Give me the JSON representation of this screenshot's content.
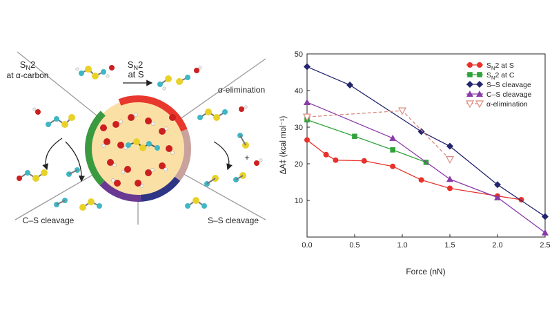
{
  "scheme": {
    "sn2_s_line1": "S",
    "sn2_s_sub": "N",
    "sn2_s_line1b": "2",
    "sn2_s_line2": "at S",
    "sn2_c_line1": "S",
    "sn2_c_sub": "N",
    "sn2_c_line1b": "2",
    "sn2_c_line2": "at α-carbon",
    "alpha_elim": "α-elimination",
    "cs_cleavage": "C–S cleavage",
    "ss_cleavage": "S–S cleavage",
    "plus": "+",
    "ring_colors": [
      "#e8372c",
      "#c9a19d",
      "#2e3585",
      "#6a3a93",
      "#3a9a3f"
    ],
    "core_color": "#fbe0a6"
  },
  "chart_data": {
    "type": "line",
    "xlabel": "Force (nN)",
    "ylabel": "ΔA‡ (kcal mol⁻¹)",
    "xlim": [
      0,
      2.5
    ],
    "ylim": [
      0,
      50
    ],
    "xticks": [
      "0.0",
      "0.5",
      "1.0",
      "1.5",
      "2.0",
      "2.5"
    ],
    "yticks": [
      "10",
      "20",
      "30",
      "40",
      "50"
    ],
    "legend_position": "top-right",
    "series": [
      {
        "name": "SN2 at S",
        "legend_main": "S",
        "legend_sub": "N",
        "legend_rest": "2 at S",
        "color": "#e8312a",
        "marker": "circle",
        "dashed": false,
        "x": [
          0.0,
          0.2,
          0.3,
          0.6,
          0.9,
          1.2,
          1.5,
          2.0,
          2.25
        ],
        "y": [
          26.5,
          22.5,
          21.0,
          20.8,
          19.3,
          15.6,
          13.3,
          11.2,
          10.2
        ]
      },
      {
        "name": "SN2 at C",
        "legend_main": "S",
        "legend_sub": "N",
        "legend_rest": "2 at C",
        "color": "#2fa33a",
        "marker": "square",
        "dashed": false,
        "x": [
          0.0,
          0.5,
          0.9,
          1.25
        ],
        "y": [
          32.0,
          27.5,
          23.8,
          20.4
        ]
      },
      {
        "name": "S–S cleavage",
        "legend_main": "S–S cleavage",
        "legend_sub": "",
        "legend_rest": "",
        "color": "#23256e",
        "marker": "diamond",
        "dashed": false,
        "x": [
          0.0,
          0.45,
          1.2,
          1.5,
          2.0,
          2.5
        ],
        "y": [
          46.5,
          41.5,
          28.8,
          24.8,
          14.3,
          5.6
        ]
      },
      {
        "name": "C–S cleavage",
        "legend_main": "C–S cleavage",
        "legend_sub": "",
        "legend_rest": "",
        "color": "#8a3aa8",
        "marker": "triangle",
        "dashed": false,
        "x": [
          0.0,
          0.9,
          1.5,
          2.0,
          2.5
        ],
        "y": [
          36.8,
          27.0,
          15.8,
          10.8,
          1.2
        ]
      },
      {
        "name": "α-elimination",
        "legend_main": "α-elimination",
        "legend_sub": "",
        "legend_rest": "",
        "color": "#d98a80",
        "marker": "triangle-down-open",
        "dashed": true,
        "x": [
          0.0,
          1.0,
          1.5
        ],
        "y": [
          32.8,
          34.5,
          21.2
        ]
      }
    ]
  }
}
